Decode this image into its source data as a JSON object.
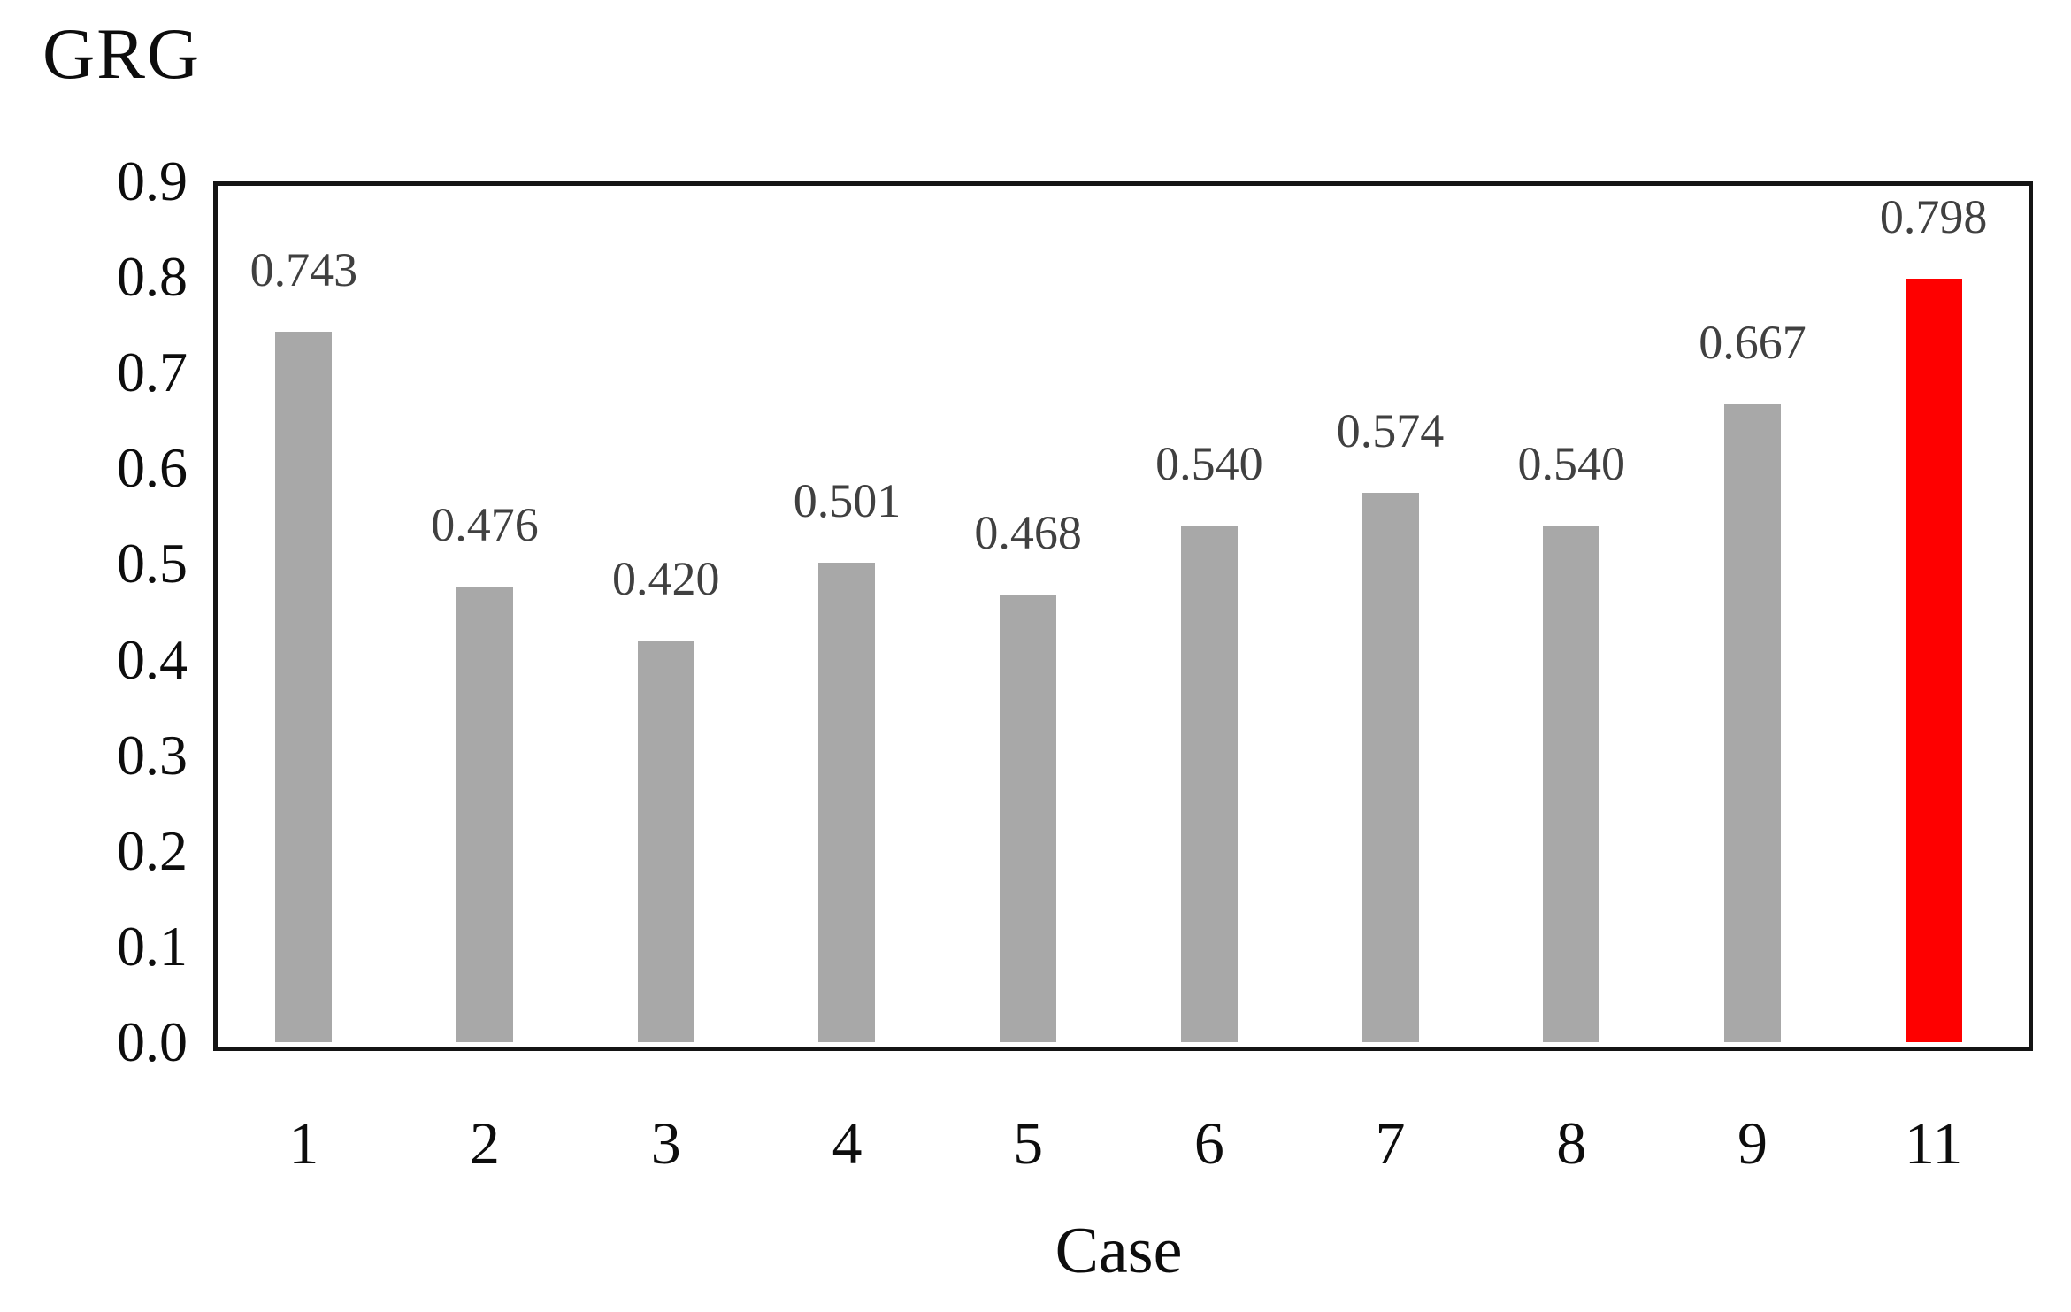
{
  "chart_data": {
    "type": "bar",
    "title": "",
    "y_axis_title": "GRG",
    "x_axis_title": "Case",
    "categories": [
      "1",
      "2",
      "3",
      "4",
      "5",
      "6",
      "7",
      "8",
      "9",
      "11"
    ],
    "values": [
      0.743,
      0.476,
      0.42,
      0.501,
      0.468,
      0.54,
      0.574,
      0.54,
      0.667,
      0.798
    ],
    "value_labels": [
      "0.743",
      "0.476",
      "0.420",
      "0.501",
      "0.468",
      "0.540",
      "0.574",
      "0.540",
      "0.667",
      "0.798"
    ],
    "y_ticks": [
      "0.9",
      "0.8",
      "0.7",
      "0.6",
      "0.5",
      "0.4",
      "0.3",
      "0.2",
      "0.1",
      "0.0"
    ],
    "ylim": [
      0.0,
      0.9
    ],
    "grid": false,
    "legend": false,
    "bar_color": "#a8a8a8",
    "highlight_index": 9,
    "highlight_color": "#fe0000",
    "value_label_color": "#404040",
    "axis_text_color": "#0d0d0d"
  }
}
